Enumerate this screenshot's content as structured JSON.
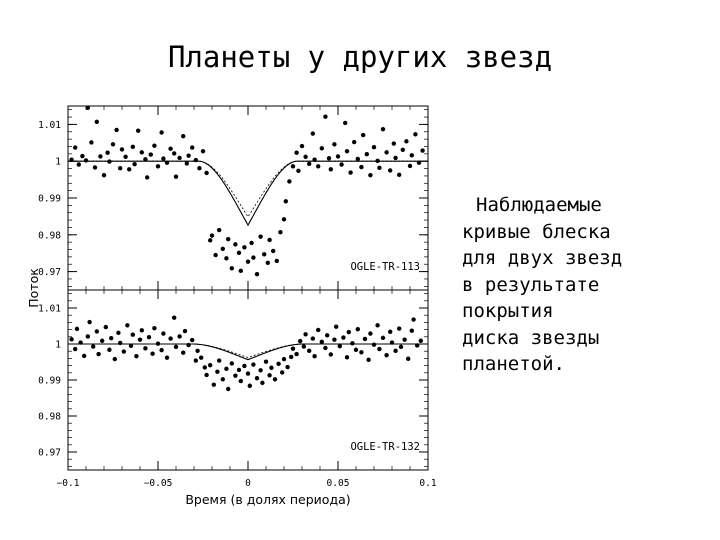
{
  "slide": {
    "title": "Планеты у других звезд",
    "side_text": [
      "Наблюдаемые",
      "кривые блеска",
      "для двух звезд",
      "в результате",
      "покрытия",
      "диска звезды",
      "планетой."
    ]
  },
  "chart_data": [
    {
      "type": "scatter",
      "label": "OGLE-TR-113",
      "xlim": [
        -0.1,
        0.1
      ],
      "ylim": [
        0.965,
        1.015
      ],
      "yticks": [
        1.01,
        1,
        0.99,
        0.98,
        0.97
      ],
      "ytick_labels": [
        "1.01",
        "1",
        "0.99",
        "0.98",
        "0.97"
      ],
      "model": {
        "depth": 0.0305,
        "ingress_start": -0.0275,
        "flat_start": -0.021,
        "flat_end": 0.021,
        "egress_end": 0.0275
      },
      "model_dashed_depth": 0.0265,
      "points": [
        [
          -0.098,
          1.0004
        ],
        [
          -0.096,
          1.0037
        ],
        [
          -0.094,
          0.9991
        ],
        [
          -0.092,
          1.0014
        ],
        [
          -0.09,
          1.0002
        ],
        [
          -0.089,
          1.0145
        ],
        [
          -0.087,
          1.0051
        ],
        [
          -0.085,
          0.9983
        ],
        [
          -0.084,
          1.0107
        ],
        [
          -0.082,
          1.0013
        ],
        [
          -0.08,
          0.9962
        ],
        [
          -0.078,
          1.0023
        ],
        [
          -0.077,
          0.9999
        ],
        [
          -0.075,
          1.0046
        ],
        [
          -0.073,
          1.0085
        ],
        [
          -0.071,
          0.9981
        ],
        [
          -0.07,
          1.0032
        ],
        [
          -0.068,
          1.0012
        ],
        [
          -0.066,
          0.9978
        ],
        [
          -0.064,
          1.0039
        ],
        [
          -0.063,
          0.9992
        ],
        [
          -0.061,
          1.0083
        ],
        [
          -0.059,
          1.0024
        ],
        [
          -0.057,
          1.0005
        ],
        [
          -0.056,
          0.9956
        ],
        [
          -0.054,
          1.0018
        ],
        [
          -0.052,
          1.0042
        ],
        [
          -0.05,
          0.9986
        ],
        [
          -0.048,
          1.0078
        ],
        [
          -0.047,
          1.0007
        ],
        [
          -0.045,
          0.9996
        ],
        [
          -0.043,
          1.0034
        ],
        [
          -0.041,
          1.0021
        ],
        [
          -0.04,
          0.9958
        ],
        [
          -0.038,
          1.0009
        ],
        [
          -0.036,
          1.0068
        ],
        [
          -0.034,
          0.9994
        ],
        [
          -0.033,
          1.0015
        ],
        [
          -0.031,
          1.0037
        ],
        [
          -0.029,
          1.0003
        ],
        [
          -0.027,
          0.9981
        ],
        [
          -0.025,
          1.0027
        ],
        [
          -0.023,
          0.9968
        ],
        [
          -0.021,
          0.9785
        ],
        [
          -0.02,
          0.9798
        ],
        [
          -0.018,
          0.9745
        ],
        [
          -0.016,
          0.9813
        ],
        [
          -0.014,
          0.9762
        ],
        [
          -0.012,
          0.9736
        ],
        [
          -0.011,
          0.9788
        ],
        [
          -0.009,
          0.9709
        ],
        [
          -0.007,
          0.9774
        ],
        [
          -0.005,
          0.9751
        ],
        [
          -0.004,
          0.9702
        ],
        [
          -0.002,
          0.9766
        ],
        [
          0.0,
          0.9727
        ],
        [
          0.002,
          0.9778
        ],
        [
          0.003,
          0.9738
        ],
        [
          0.005,
          0.9693
        ],
        [
          0.007,
          0.9795
        ],
        [
          0.009,
          0.9747
        ],
        [
          0.011,
          0.9724
        ],
        [
          0.012,
          0.9786
        ],
        [
          0.014,
          0.9756
        ],
        [
          0.016,
          0.9729
        ],
        [
          0.018,
          0.9807
        ],
        [
          0.02,
          0.9842
        ],
        [
          0.021,
          0.9891
        ],
        [
          0.023,
          0.9945
        ],
        [
          0.025,
          0.9986
        ],
        [
          0.027,
          1.0023
        ],
        [
          0.028,
          0.9974
        ],
        [
          0.03,
          1.0041
        ],
        [
          0.032,
          1.0012
        ],
        [
          0.034,
          0.9993
        ],
        [
          0.036,
          1.0075
        ],
        [
          0.037,
          1.0004
        ],
        [
          0.039,
          0.9986
        ],
        [
          0.041,
          1.0035
        ],
        [
          0.043,
          1.0121
        ],
        [
          0.045,
          1.0008
        ],
        [
          0.046,
          0.9978
        ],
        [
          0.048,
          1.0046
        ],
        [
          0.05,
          1.0013
        ],
        [
          0.052,
          0.9991
        ],
        [
          0.054,
          1.0104
        ],
        [
          0.055,
          1.0027
        ],
        [
          0.057,
          0.9969
        ],
        [
          0.059,
          1.0052
        ],
        [
          0.061,
          1.0006
        ],
        [
          0.063,
          0.9984
        ],
        [
          0.064,
          1.0071
        ],
        [
          0.066,
          1.0019
        ],
        [
          0.068,
          0.9962
        ],
        [
          0.07,
          1.0038
        ],
        [
          0.072,
          1.0001
        ],
        [
          0.073,
          0.9982
        ],
        [
          0.075,
          1.0087
        ],
        [
          0.077,
          1.0024
        ],
        [
          0.079,
          0.9975
        ],
        [
          0.081,
          1.0048
        ],
        [
          0.082,
          1.0009
        ],
        [
          0.084,
          0.9963
        ],
        [
          0.086,
          1.0031
        ],
        [
          0.088,
          1.0054
        ],
        [
          0.09,
          0.9987
        ],
        [
          0.091,
          1.0016
        ],
        [
          0.093,
          1.0073
        ],
        [
          0.095,
          0.9996
        ],
        [
          0.097,
          1.0029
        ]
      ]
    },
    {
      "type": "scatter",
      "label": "OGLE-TR-132",
      "xlim": [
        -0.1,
        0.1
      ],
      "ylim": [
        0.965,
        1.015
      ],
      "yticks": [
        1.01,
        1,
        0.99,
        0.98,
        0.97
      ],
      "ytick_labels": [
        "1.01",
        "1",
        "0.99",
        "0.98",
        "0.97"
      ],
      "model": {
        "depth": 0.0075,
        "ingress_start": -0.031,
        "flat_start": -0.023,
        "flat_end": 0.023,
        "egress_end": 0.031
      },
      "model_dashed_depth": 0.0065,
      "points": [
        [
          -0.098,
          1.0013
        ],
        [
          -0.096,
          0.9986
        ],
        [
          -0.095,
          1.0042
        ],
        [
          -0.093,
          1.0004
        ],
        [
          -0.091,
          0.9967
        ],
        [
          -0.089,
          1.0021
        ],
        [
          -0.088,
          1.0061
        ],
        [
          -0.086,
          0.9993
        ],
        [
          -0.084,
          1.0035
        ],
        [
          -0.083,
          0.9972
        ],
        [
          -0.081,
          1.0009
        ],
        [
          -0.079,
          1.0047
        ],
        [
          -0.077,
          0.9984
        ],
        [
          -0.076,
          1.0016
        ],
        [
          -0.074,
          0.9958
        ],
        [
          -0.072,
          1.0031
        ],
        [
          -0.071,
          1.0003
        ],
        [
          -0.069,
          0.9979
        ],
        [
          -0.067,
          1.0052
        ],
        [
          -0.065,
          0.9995
        ],
        [
          -0.064,
          1.0026
        ],
        [
          -0.062,
          0.9966
        ],
        [
          -0.06,
          1.0012
        ],
        [
          -0.059,
          1.0038
        ],
        [
          -0.057,
          0.9988
        ],
        [
          -0.055,
          1.0019
        ],
        [
          -0.053,
          0.9973
        ],
        [
          -0.052,
          1.0044
        ],
        [
          -0.05,
          1.0001
        ],
        [
          -0.048,
          0.9983
        ],
        [
          -0.047,
          1.0029
        ],
        [
          -0.045,
          0.9962
        ],
        [
          -0.043,
          1.0015
        ],
        [
          -0.041,
          1.0073
        ],
        [
          -0.04,
          0.9992
        ],
        [
          -0.038,
          1.0021
        ],
        [
          -0.036,
          0.9976
        ],
        [
          -0.035,
          1.0036
        ],
        [
          -0.033,
          0.9997
        ],
        [
          -0.031,
          1.0011
        ],
        [
          -0.029,
          0.9954
        ],
        [
          -0.028,
          0.9981
        ],
        [
          -0.026,
          0.9962
        ],
        [
          -0.024,
          0.9935
        ],
        [
          -0.023,
          0.9914
        ],
        [
          -0.021,
          0.9941
        ],
        [
          -0.019,
          0.9887
        ],
        [
          -0.017,
          0.9923
        ],
        [
          -0.016,
          0.9954
        ],
        [
          -0.014,
          0.9902
        ],
        [
          -0.012,
          0.9931
        ],
        [
          -0.011,
          0.9875
        ],
        [
          -0.009,
          0.9946
        ],
        [
          -0.007,
          0.9912
        ],
        [
          -0.005,
          0.9928
        ],
        [
          -0.004,
          0.9897
        ],
        [
          -0.002,
          0.9939
        ],
        [
          0.0,
          0.9918
        ],
        [
          0.001,
          0.9884
        ],
        [
          0.003,
          0.9943
        ],
        [
          0.005,
          0.9905
        ],
        [
          0.007,
          0.9927
        ],
        [
          0.008,
          0.9892
        ],
        [
          0.01,
          0.9951
        ],
        [
          0.012,
          0.9913
        ],
        [
          0.013,
          0.9934
        ],
        [
          0.015,
          0.9902
        ],
        [
          0.017,
          0.9945
        ],
        [
          0.019,
          0.9921
        ],
        [
          0.02,
          0.9958
        ],
        [
          0.022,
          0.9936
        ],
        [
          0.024,
          0.9964
        ],
        [
          0.025,
          0.9987
        ],
        [
          0.027,
          0.9972
        ],
        [
          0.029,
          1.0008
        ],
        [
          0.031,
          0.9993
        ],
        [
          0.032,
          1.0027
        ],
        [
          0.034,
          0.9981
        ],
        [
          0.036,
          1.0015
        ],
        [
          0.037,
          0.9966
        ],
        [
          0.039,
          1.0039
        ],
        [
          0.041,
          1.0006
        ],
        [
          0.043,
          0.9989
        ],
        [
          0.044,
          1.0024
        ],
        [
          0.046,
          0.9971
        ],
        [
          0.048,
          1.0012
        ],
        [
          0.049,
          1.0048
        ],
        [
          0.051,
          0.9994
        ],
        [
          0.053,
          1.0018
        ],
        [
          0.055,
          0.9963
        ],
        [
          0.056,
          1.0033
        ],
        [
          0.058,
          1.0002
        ],
        [
          0.06,
          0.9984
        ],
        [
          0.061,
          1.0041
        ],
        [
          0.063,
          0.9977
        ],
        [
          0.065,
          1.0014
        ],
        [
          0.067,
          0.9956
        ],
        [
          0.068,
          1.0029
        ],
        [
          0.07,
          0.9998
        ],
        [
          0.072,
          1.0052
        ],
        [
          0.073,
          0.9986
        ],
        [
          0.075,
          1.0017
        ],
        [
          0.077,
          0.9969
        ],
        [
          0.079,
          1.0034
        ],
        [
          0.08,
          1.0004
        ],
        [
          0.082,
          0.9981
        ],
        [
          0.084,
          1.0043
        ],
        [
          0.085,
          0.9992
        ],
        [
          0.087,
          1.0012
        ],
        [
          0.089,
          0.9959
        ],
        [
          0.091,
          1.0037
        ],
        [
          0.092,
          1.0068
        ],
        [
          0.094,
          0.9996
        ],
        [
          0.096,
          1.0009
        ]
      ]
    }
  ],
  "axes": {
    "xticks": [
      -0.1,
      -0.05,
      0,
      0.05,
      0.1
    ],
    "xtick_labels": [
      "−0.1",
      "−0.05",
      "0",
      "0.05",
      "0.1"
    ],
    "xlabel": "Время (в долях периода)",
    "ylabel": "Поток"
  }
}
